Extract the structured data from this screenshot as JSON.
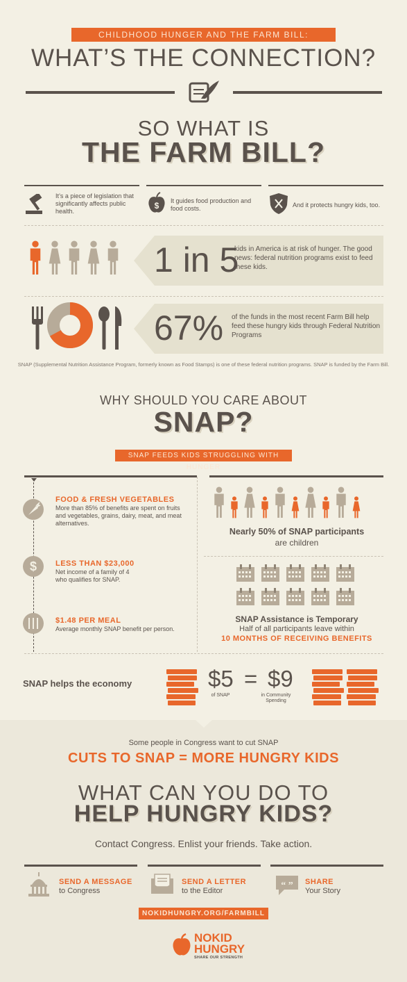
{
  "header": {
    "banner": "CHILDHOOD HUNGER AND THE FARM BILL:",
    "title": "WHAT’S THE CONNECTION?"
  },
  "farm_bill": {
    "pre_title": "SO WHAT IS",
    "title": "THE FARM BILL?",
    "facts": [
      {
        "icon": "gavel-icon",
        "text": "It’s a piece of legislation that significantly affects public health."
      },
      {
        "icon": "apple-dollar-icon",
        "text": "It guides food production and food costs."
      },
      {
        "icon": "shield-utensils-icon",
        "text": "And it protects hungry kids, too."
      }
    ],
    "stat1": {
      "value": "1 in 5",
      "text": "kids in America is at risk of hunger. The good news: federal nutrition programs exist to feed these kids."
    },
    "stat2": {
      "value": "67%",
      "text": "of the funds in the most recent Farm Bill help feed these hungry kids through Federal Nutrition Programs"
    },
    "donut_fraction": 0.67,
    "footnote": "SNAP (Supplemental Nutrition Assistance Program, formerly known as Food Stamps) is one of these federal nutrition programs. SNAP is funded by the Farm Bill."
  },
  "snap": {
    "pre_title": "WHY SHOULD YOU CARE ABOUT",
    "title": "SNAP?",
    "banner": "SNAP FEEDS KIDS STRUGGLING WITH HUNGER",
    "items": [
      {
        "icon": "carrot-icon",
        "title": "FOOD & FRESH VEGETABLES",
        "text": "More than 85% of benefits are spent on fruits and vegetables, grains, dairy, meat, and meat alternatives."
      },
      {
        "icon": "dollar-icon",
        "title": "LESS THAN $23,000",
        "text": "Net income of a family of 4 who qualifies for SNAP."
      },
      {
        "icon": "utensils-icon",
        "title": "$1.48 PER MEAL",
        "text": "Average monthly SNAP benefit per person."
      }
    ],
    "participants_bold": "Nearly 50% of SNAP participants",
    "participants_rest": "are children",
    "temporary_title": "SNAP Assistance is Temporary",
    "temporary_text": "Half of all participants leave within",
    "temporary_highlight": "10 MONTHS OF RECEIVING BENEFITS",
    "economy_label": "SNAP helps the economy",
    "economy_left_value": "$5",
    "economy_left_caption": "of SNAP",
    "economy_equals": "=",
    "economy_right_value": "$9",
    "economy_right_caption": "in Community Spending"
  },
  "cta": {
    "intro": "Some people in Congress want to cut SNAP",
    "headline": "CUTS TO SNAP = MORE HUNGRY KIDS",
    "pre_title": "WHAT CAN YOU DO TO",
    "title": "HELP HUNGRY KIDS?",
    "subtitle": "Contact Congress. Enlist your friends. Take action.",
    "actions": [
      {
        "icon": "capitol-icon",
        "title": "SEND A MESSAGE",
        "sub": "to Congress"
      },
      {
        "icon": "letter-icon",
        "title": "SEND A LETTER",
        "sub": "to the Editor"
      },
      {
        "icon": "quote-icon",
        "title": "SHARE",
        "sub": "Your Story"
      }
    ],
    "url": "NOKIDHUNGRY.ORG/FARMBILL"
  },
  "logo": {
    "line1": "NOKID",
    "line2": "HUNGRY",
    "tagline": "SHARE OUR STRENGTH"
  },
  "colors": {
    "accent": "#e8672b",
    "text": "#5a524c",
    "muted": "#b7ab99",
    "background": "#f3f0e4"
  }
}
